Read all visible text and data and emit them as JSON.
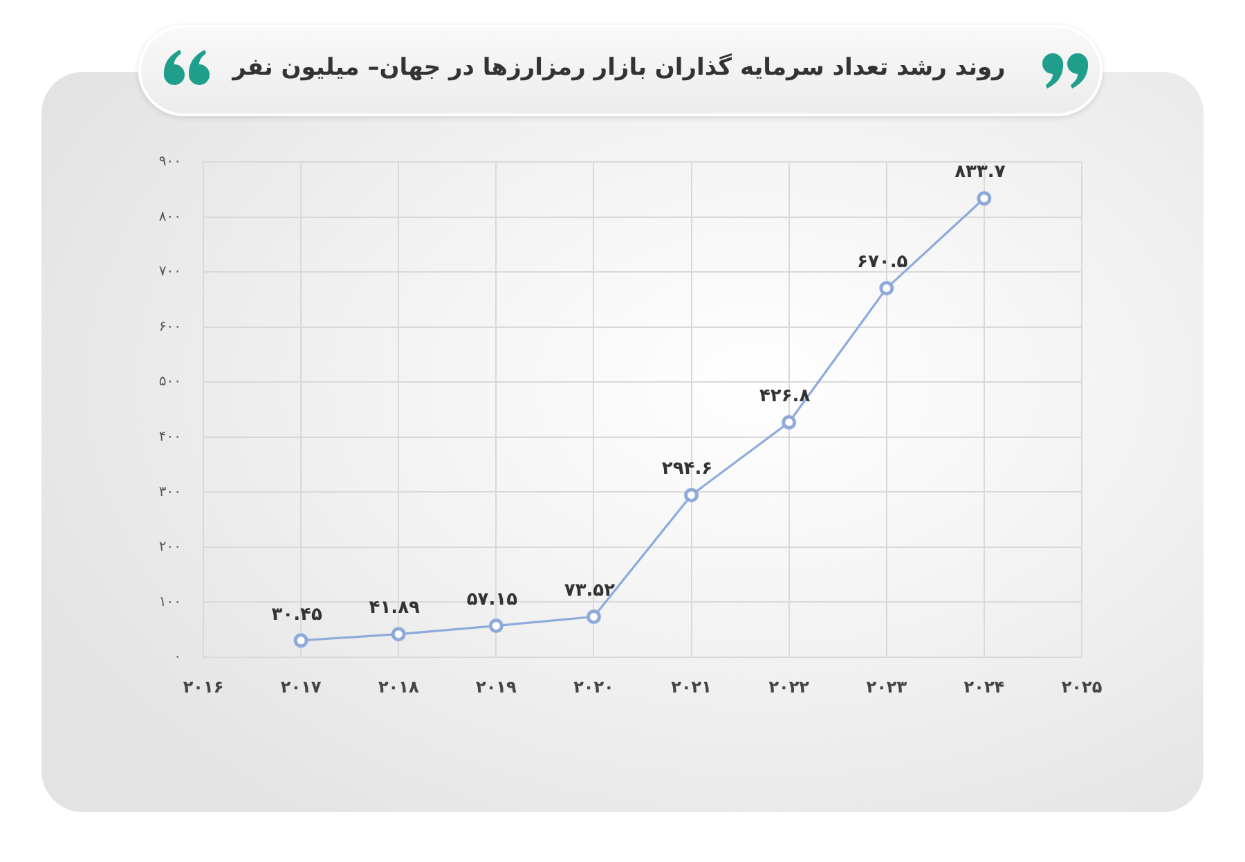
{
  "chart_data": {
    "type": "line",
    "title": "روند رشد تعداد سرمایه گذاران بازار رمزارزها در جهان– میلیون نفر",
    "x": [
      2017,
      2018,
      2019,
      2020,
      2021,
      2022,
      2023,
      2024
    ],
    "xlim": [
      2016,
      2025
    ],
    "xticks": [
      {
        "value": 2016,
        "label": "۲۰۱۶"
      },
      {
        "value": 2017,
        "label": "۲۰۱۷"
      },
      {
        "value": 2018,
        "label": "۲۰۱۸"
      },
      {
        "value": 2019,
        "label": "۲۰۱۹"
      },
      {
        "value": 2020,
        "label": "۲۰۲۰"
      },
      {
        "value": 2021,
        "label": "۲۰۲۱"
      },
      {
        "value": 2022,
        "label": "۲۰۲۲"
      },
      {
        "value": 2023,
        "label": "۲۰۲۳"
      },
      {
        "value": 2024,
        "label": "۲۰۲۴"
      },
      {
        "value": 2025,
        "label": "۲۰۲۵"
      }
    ],
    "ylim": [
      0,
      900
    ],
    "yticks": [
      {
        "value": 0,
        "label": "۰"
      },
      {
        "value": 100,
        "label": "۱۰۰"
      },
      {
        "value": 200,
        "label": "۲۰۰"
      },
      {
        "value": 300,
        "label": "۳۰۰"
      },
      {
        "value": 400,
        "label": "۴۰۰"
      },
      {
        "value": 500,
        "label": "۵۰۰"
      },
      {
        "value": 600,
        "label": "۶۰۰"
      },
      {
        "value": 700,
        "label": "۷۰۰"
      },
      {
        "value": 800,
        "label": "۸۰۰"
      },
      {
        "value": 900,
        "label": "۹۰۰"
      }
    ],
    "series": [
      {
        "color": "#8eaadb",
        "values": [
          30.45,
          41.89,
          57.15,
          73.52,
          294.6,
          426.8,
          670.5,
          833.7
        ],
        "value_labels": [
          "۳۰.۴۵",
          "۴۱.۸۹",
          "۵۷.۱۵",
          "۷۳.۵۲",
          "۲۹۴.۶",
          "۴۲۶.۸",
          "۶۷۰.۵",
          "۸۳۳.۷"
        ]
      }
    ],
    "grid": true,
    "marker": "circle",
    "line_style": "solid"
  }
}
